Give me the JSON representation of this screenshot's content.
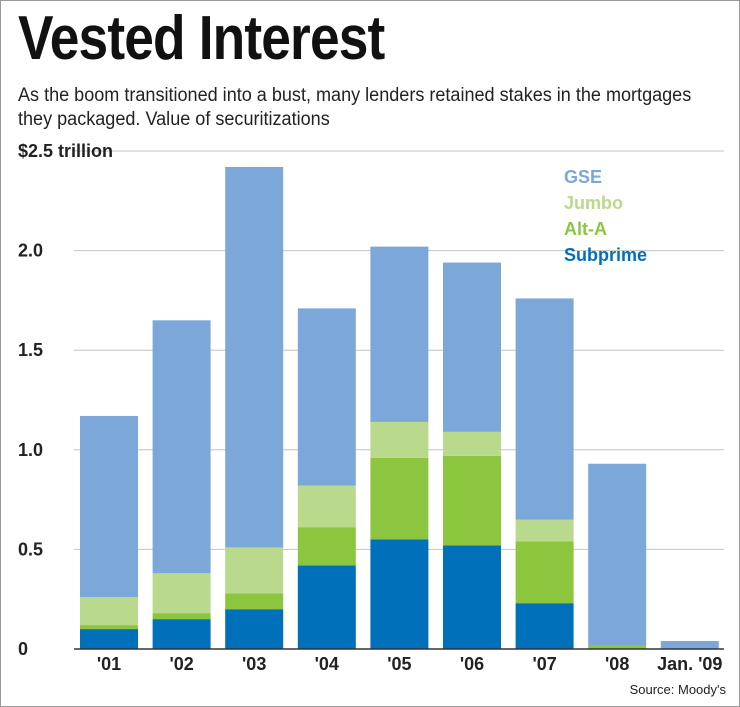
{
  "title": "Vested Interest",
  "subtitle": "As the boom transitioned into a bust, many lenders retained stakes in the mortgages they packaged. Value of securitizations",
  "source": "Source: Moody's",
  "chart_data": {
    "type": "bar",
    "stacked": true,
    "categories": [
      "'01",
      "'02",
      "'03",
      "'04",
      "'05",
      "'06",
      "'07",
      "'08",
      "Jan. '09"
    ],
    "series": [
      {
        "name": "Subprime",
        "color": "#0070bb",
        "values": [
          0.1,
          0.15,
          0.2,
          0.42,
          0.55,
          0.52,
          0.23,
          0.0,
          0.0
        ]
      },
      {
        "name": "Alt-A",
        "color": "#8cc63f",
        "values": [
          0.02,
          0.03,
          0.08,
          0.19,
          0.41,
          0.45,
          0.31,
          0.02,
          0.0
        ]
      },
      {
        "name": "Jumbo",
        "color": "#b9d98c",
        "values": [
          0.14,
          0.2,
          0.23,
          0.21,
          0.18,
          0.12,
          0.11,
          0.0,
          0.0
        ]
      },
      {
        "name": "GSE",
        "color": "#7ba7d9",
        "values": [
          0.91,
          1.27,
          1.91,
          0.89,
          0.88,
          0.85,
          1.11,
          0.91,
          0.04
        ]
      }
    ],
    "legend_order": [
      "GSE",
      "Jumbo",
      "Alt-A",
      "Subprime"
    ],
    "legend_position": "top-right",
    "ylim": [
      0,
      2.5
    ],
    "yticks": [
      0,
      0.5,
      1.0,
      1.5,
      2.0,
      2.5
    ],
    "ytick_labels": [
      "0",
      "0.5",
      "1.0",
      "1.5",
      "2.0",
      "$2.5 trillion"
    ],
    "grid": true,
    "xlabel": "",
    "ylabel": ""
  }
}
